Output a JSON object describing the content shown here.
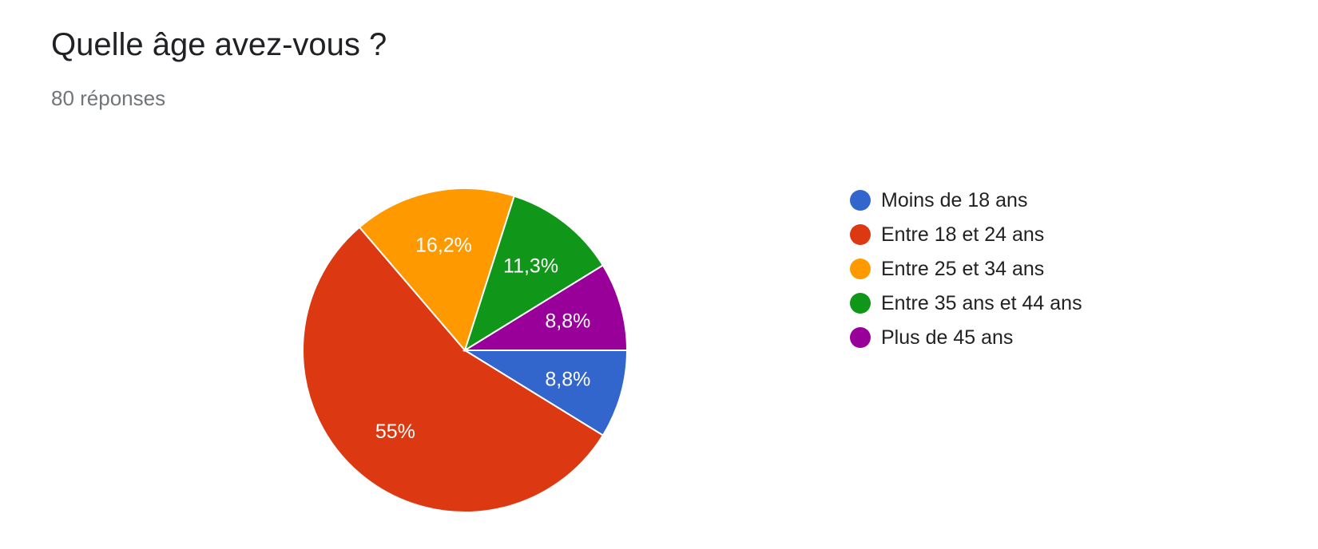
{
  "header": {
    "title": "Quelle âge avez-vous ?",
    "response_count": "80 réponses"
  },
  "chart_data": {
    "type": "pie",
    "title": "Quelle âge avez-vous ?",
    "total_responses": 80,
    "categories": [
      "Moins de 18 ans",
      "Entre 18 et 24 ans",
      "Entre 25 et 34 ans",
      "Entre 35 ans et 44 ans",
      "Plus de 45 ans"
    ],
    "values": [
      8.8,
      55,
      16.2,
      11.3,
      8.8
    ],
    "value_labels": [
      "8,8%",
      "55%",
      "16,2%",
      "11,3%",
      "8,8%"
    ],
    "colors": [
      "#3366cc",
      "#dc3912",
      "#ff9900",
      "#109618",
      "#990099"
    ],
    "legend_position": "right"
  }
}
